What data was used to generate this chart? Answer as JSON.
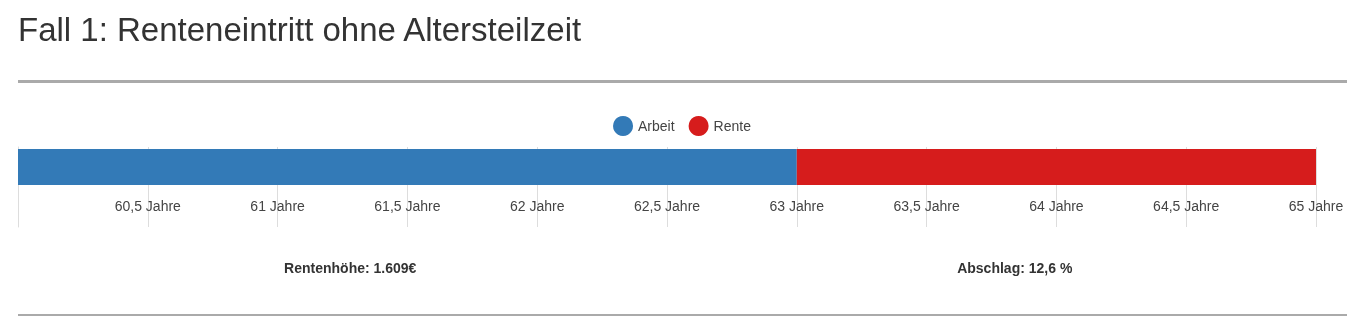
{
  "chart_data": {
    "type": "bar",
    "title": "Fall 1: Renteneintritt ohne Altersteilzeit",
    "orientation": "horizontal",
    "categories": [
      null
    ],
    "series": [
      {
        "name": "Arbeit",
        "color": "#337ab7",
        "values": [
          3
        ],
        "base": [
          60
        ]
      },
      {
        "name": "Rente",
        "color": "#d61c1c",
        "values": [
          2
        ],
        "base": [
          63
        ]
      }
    ],
    "xlim": [
      60,
      65
    ],
    "xticks": [
      {
        "value": 60,
        "label": null
      },
      {
        "value": 60.5,
        "label": "60,5 Jahre"
      },
      {
        "value": 61,
        "label": "61 Jahre"
      },
      {
        "value": 61.5,
        "label": "61,5 Jahre"
      },
      {
        "value": 62,
        "label": "62 Jahre"
      },
      {
        "value": 62.5,
        "label": "62,5 Jahre"
      },
      {
        "value": 63,
        "label": "63 Jahre"
      },
      {
        "value": 63.5,
        "label": "63,5 Jahre"
      },
      {
        "value": 64,
        "label": "64 Jahre"
      },
      {
        "value": 64.5,
        "label": "64,5 Jahre"
      },
      {
        "value": 65,
        "label": "65 Jahre"
      }
    ],
    "grid": "x",
    "legend": "top",
    "marker": "circle",
    "annotations": [
      "Rentenhöhe: 1.609€",
      "Abschlag: 12,6 %"
    ]
  }
}
